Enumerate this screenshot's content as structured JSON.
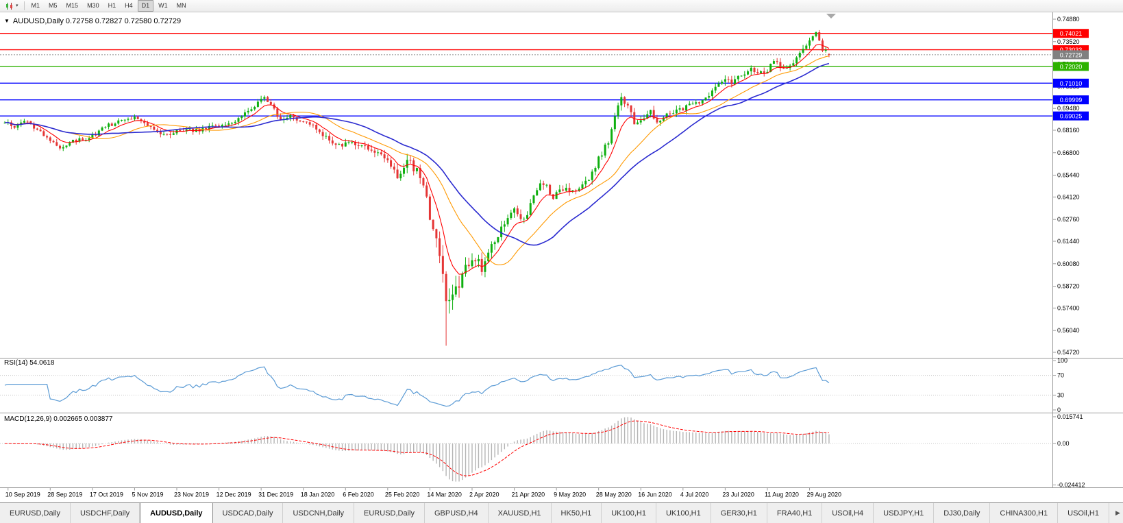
{
  "icons": {
    "title_marker": "▼",
    "chart_dropdown_caret": "▾",
    "tab_scroll_right": "▶"
  },
  "toolbar": {
    "timeframes": [
      "M1",
      "M5",
      "M15",
      "M30",
      "H1",
      "H4",
      "D1",
      "W1",
      "MN"
    ],
    "active_timeframe": "D1"
  },
  "chart": {
    "title_text": "AUDUSD,Daily 0.72758 0.72827 0.72580 0.72729",
    "price_axis": [
      {
        "v": 0.7488,
        "t": "0.74880"
      },
      {
        "v": 0.7352,
        "t": "0.73520"
      },
      {
        "v": 0.7216,
        "t": "0.72160"
      },
      {
        "v": 0.708,
        "t": "0.70800"
      },
      {
        "v": 0.6948,
        "t": "0.69480"
      },
      {
        "v": 0.6816,
        "t": "0.68160"
      },
      {
        "v": 0.668,
        "t": "0.66800"
      },
      {
        "v": 0.6544,
        "t": "0.65440"
      },
      {
        "v": 0.6412,
        "t": "0.64120"
      },
      {
        "v": 0.6276,
        "t": "0.62760"
      },
      {
        "v": 0.6144,
        "t": "0.61440"
      },
      {
        "v": 0.6008,
        "t": "0.60080"
      },
      {
        "v": 0.5872,
        "t": "0.58720"
      },
      {
        "v": 0.574,
        "t": "0.57400"
      },
      {
        "v": 0.5604,
        "t": "0.56040"
      },
      {
        "v": 0.5472,
        "t": "0.54720"
      }
    ],
    "hlines": [
      {
        "v": 0.74021,
        "t": "0.74021",
        "color": "#ff0000"
      },
      {
        "v": 0.73033,
        "t": "0.73033",
        "color": "#ff0000"
      },
      {
        "v": 0.7202,
        "t": "0.72020",
        "color": "#2db200"
      },
      {
        "v": 0.7101,
        "t": "0.71010",
        "color": "#0000ff"
      },
      {
        "v": 0.69999,
        "t": "0.69999",
        "color": "#0000ff"
      },
      {
        "v": 0.69025,
        "t": "0.69025",
        "color": "#0000ff"
      }
    ],
    "bid": {
      "v": 0.72729,
      "t": "0.72729",
      "color": "#808080"
    },
    "date_axis": [
      "10 Sep 2019",
      "28 Sep 2019",
      "17 Oct 2019",
      "5 Nov 2019",
      "23 Nov 2019",
      "12 Dec 2019",
      "31 Dec 2019",
      "18 Jan 2020",
      "6 Feb 2020",
      "25 Feb 2020",
      "14 Mar 2020",
      "2 Apr 2020",
      "21 Apr 2020",
      "9 May 2020",
      "28 May 2020",
      "16 Jun 2020",
      "4 Jul 2020",
      "23 Jul 2020",
      "11 Aug 2020",
      "29 Aug 2020"
    ],
    "rsi": {
      "label": "RSI(14) 54.0618",
      "axis": [
        {
          "v": 100,
          "t": "100"
        },
        {
          "v": 70,
          "t": "70"
        },
        {
          "v": 30,
          "t": "30"
        },
        {
          "v": 0,
          "t": "0"
        }
      ],
      "levels": [
        70,
        30
      ]
    },
    "macd": {
      "label": "MACD(12,26,9) 0.002665 0.003877",
      "axis": [
        {
          "v": 0.015741,
          "t": "0.015741"
        },
        {
          "v": 0,
          "t": "0.00"
        },
        {
          "v": -0.024412,
          "t": "-0.024412"
        }
      ]
    }
  },
  "chart_data": {
    "type": "candlestick",
    "symbol": "AUDUSD",
    "period": "Daily",
    "bars": 255,
    "price_range": [
      0.5472,
      0.7488
    ],
    "last_bar": {
      "open": 0.72758,
      "high": 0.72827,
      "low": 0.7258,
      "close": 0.72729
    },
    "price_anchors": [
      [
        0,
        0.6862
      ],
      [
        3,
        0.684
      ],
      [
        6,
        0.6875
      ],
      [
        10,
        0.6815
      ],
      [
        14,
        0.676
      ],
      [
        17,
        0.6705
      ],
      [
        20,
        0.6745
      ],
      [
        24,
        0.676
      ],
      [
        27,
        0.678
      ],
      [
        31,
        0.684
      ],
      [
        34,
        0.686
      ],
      [
        38,
        0.6895
      ],
      [
        41,
        0.6885
      ],
      [
        45,
        0.6835
      ],
      [
        49,
        0.6785
      ],
      [
        52,
        0.68
      ],
      [
        56,
        0.6825
      ],
      [
        60,
        0.681
      ],
      [
        64,
        0.6845
      ],
      [
        68,
        0.6855
      ],
      [
        72,
        0.6885
      ],
      [
        76,
        0.695
      ],
      [
        80,
        0.702
      ],
      [
        83,
        0.6935
      ],
      [
        85,
        0.6875
      ],
      [
        88,
        0.6905
      ],
      [
        92,
        0.687
      ],
      [
        95,
        0.684
      ],
      [
        98,
        0.6785
      ],
      [
        101,
        0.6745
      ],
      [
        103,
        0.672
      ],
      [
        107,
        0.6748
      ],
      [
        111,
        0.6712
      ],
      [
        114,
        0.6685
      ],
      [
        118,
        0.663
      ],
      [
        121,
        0.6545
      ],
      [
        124,
        0.6625
      ],
      [
        127,
        0.6585
      ],
      [
        129,
        0.6455
      ],
      [
        131,
        0.631
      ],
      [
        133,
        0.616
      ],
      [
        135,
        0.59
      ],
      [
        136,
        0.5775
      ],
      [
        138,
        0.581
      ],
      [
        140,
        0.588
      ],
      [
        142,
        0.5985
      ],
      [
        144,
        0.606
      ],
      [
        147,
        0.5985
      ],
      [
        150,
        0.613
      ],
      [
        153,
        0.6215
      ],
      [
        157,
        0.634
      ],
      [
        160,
        0.627
      ],
      [
        164,
        0.646
      ],
      [
        166,
        0.6495
      ],
      [
        169,
        0.6415
      ],
      [
        172,
        0.646
      ],
      [
        175,
        0.644
      ],
      [
        178,
        0.6475
      ],
      [
        181,
        0.6555
      ],
      [
        183,
        0.664
      ],
      [
        186,
        0.6755
      ],
      [
        188,
        0.69
      ],
      [
        190,
        0.7
      ],
      [
        192,
        0.698
      ],
      [
        194,
        0.6855
      ],
      [
        196,
        0.688
      ],
      [
        199,
        0.6925
      ],
      [
        201,
        0.685
      ],
      [
        204,
        0.6905
      ],
      [
        207,
        0.693
      ],
      [
        209,
        0.6945
      ],
      [
        212,
        0.6975
      ],
      [
        215,
        0.699
      ],
      [
        218,
        0.7045
      ],
      [
        220,
        0.711
      ],
      [
        222,
        0.7135
      ],
      [
        224,
        0.7105
      ],
      [
        227,
        0.715
      ],
      [
        230,
        0.719
      ],
      [
        232,
        0.7165
      ],
      [
        235,
        0.7175
      ],
      [
        237,
        0.7235
      ],
      [
        240,
        0.7185
      ],
      [
        243,
        0.723
      ],
      [
        246,
        0.7295
      ],
      [
        248,
        0.7365
      ],
      [
        250,
        0.74
      ],
      [
        251,
        0.7345
      ],
      [
        252,
        0.7285
      ],
      [
        253,
        0.7305
      ],
      [
        254,
        0.72729
      ]
    ],
    "volatility_anchors": [
      [
        0,
        0.0042
      ],
      [
        80,
        0.0046
      ],
      [
        118,
        0.0062
      ],
      [
        128,
        0.0125
      ],
      [
        133,
        0.0165
      ],
      [
        137,
        0.0185
      ],
      [
        141,
        0.0145
      ],
      [
        146,
        0.011
      ],
      [
        152,
        0.0085
      ],
      [
        160,
        0.007
      ],
      [
        183,
        0.0062
      ],
      [
        190,
        0.0082
      ],
      [
        196,
        0.0062
      ],
      [
        220,
        0.0052
      ],
      [
        248,
        0.0056
      ],
      [
        254,
        0.0046
      ]
    ],
    "wick_overrides": [
      {
        "bar": 136,
        "low": 0.5512
      },
      {
        "bar": 190,
        "high": 0.704
      },
      {
        "bar": 250,
        "high": 0.7413
      }
    ],
    "moving_averages": [
      {
        "period": 8,
        "type": "ema",
        "color": "#ff0000",
        "width": 1.1
      },
      {
        "period": 21,
        "type": "sma",
        "color": "#ff9900",
        "width": 1.1
      },
      {
        "period": 34,
        "type": "sma",
        "color": "#2a2ad0",
        "width": 1.6
      }
    ],
    "indicators": {
      "rsi": {
        "period": 14,
        "current": 54.0618,
        "scale": [
          0,
          100
        ],
        "levels": [
          30,
          70
        ]
      },
      "macd": {
        "fast": 12,
        "slow": 26,
        "signal_period": 9,
        "current_main": 0.002665,
        "current_signal": 0.003877,
        "axis_marks": [
          0.015741,
          0,
          -0.024412
        ]
      }
    }
  },
  "tab_bar": {
    "tabs": [
      "EURUSD,Daily",
      "USDCHF,Daily",
      "AUDUSD,Daily",
      "USDCAD,Daily",
      "USDCNH,Daily",
      "EURUSD,Daily",
      "GBPUSD,H4",
      "XAUUSD,H1",
      "HK50,H1",
      "UK100,H1",
      "UK100,H1",
      "GER30,H1",
      "FRA40,H1",
      "USOil,H4",
      "USDJPY,H1",
      "DJ30,Daily",
      "CHINA300,H1",
      "USOil,H1"
    ],
    "active_index": 2
  },
  "colors": {
    "candle_up": "#0faf0f",
    "candle_down": "#e53535",
    "rsi": "#5b9bd5",
    "macd_hist": "#b4b4b4",
    "macd_signal": "#ff0000",
    "axis": "#999999",
    "bid_box": "#808080"
  }
}
